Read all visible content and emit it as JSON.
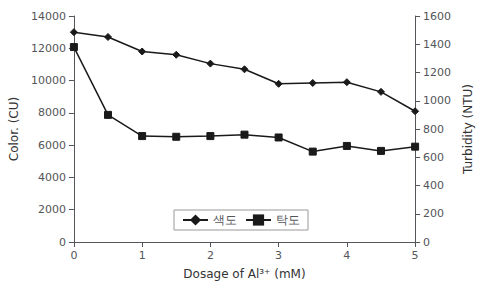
{
  "chart_data": {
    "type": "line",
    "x": [
      0,
      0.5,
      1.0,
      1.5,
      2.0,
      2.5,
      3.0,
      3.5,
      4.0,
      4.5,
      5.0
    ],
    "series": [
      {
        "name": "색도",
        "color": "#1a1a1a",
        "marker": "diamond",
        "values": [
          13000,
          12700,
          11800,
          11600,
          11050,
          10700,
          9800,
          9850,
          9900,
          9300,
          8100
        ]
      },
      {
        "name": "탁도",
        "color": "#1a1a1a",
        "marker": "square",
        "axis": "y2",
        "values": [
          1380,
          900,
          750,
          745,
          750,
          760,
          740,
          640,
          680,
          645,
          675
        ]
      }
    ],
    "xlabel": "Dosage of Al³⁺ (mM)",
    "ylabel": "Color. (CU)",
    "y2label": "Turbidity (NTU)",
    "xlim": [
      0,
      5
    ],
    "xticks": [
      0,
      1,
      2,
      3,
      4,
      5
    ],
    "ylim": [
      0,
      14000
    ],
    "yticks": [
      0,
      2000,
      4000,
      6000,
      8000,
      10000,
      12000,
      14000
    ],
    "y2lim": [
      0,
      1600
    ],
    "y2ticks": [
      0,
      200,
      400,
      600,
      800,
      1000,
      1200,
      1400,
      1600
    ],
    "grid": false,
    "legend": "bottom"
  }
}
